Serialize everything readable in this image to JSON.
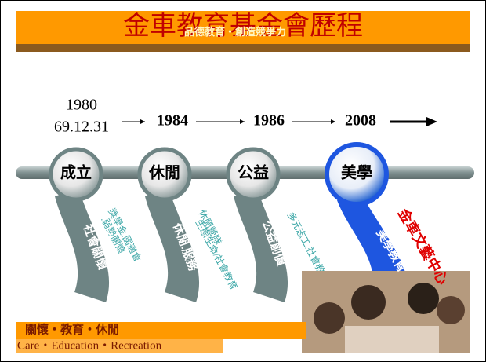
{
  "header": {
    "title": "金車教育基金會歷程",
    "subtitle": "品德教育‧創造競爭力"
  },
  "timeline": [
    {
      "year": "1980",
      "date": "69.12.31"
    },
    {
      "year": "1984"
    },
    {
      "year": "1986"
    },
    {
      "year": "2008"
    }
  ],
  "stages": [
    {
      "label": "成立",
      "ribbon_title": "社會關懷",
      "ribbon_lines": [
        "獎學金.國適會",
        ".弱勢關懷"
      ]
    },
    {
      "label": "休閒",
      "ribbon_title": "休閒.服務",
      "ribbon_lines": [
        "休閒營隊",
        "生態生命/社會教育"
      ]
    },
    {
      "label": "公益",
      "ribbon_title": "公益創價",
      "ribbon_lines": [
        "多元志工.社會教育"
      ]
    },
    {
      "label": "美學",
      "ribbon_title": "美學教育",
      "ribbon_lines": [
        "金車文藝中心"
      ]
    }
  ],
  "footer": {
    "line1": "關懷・教育・休閒",
    "line2": "Care・Education・Recreation"
  }
}
